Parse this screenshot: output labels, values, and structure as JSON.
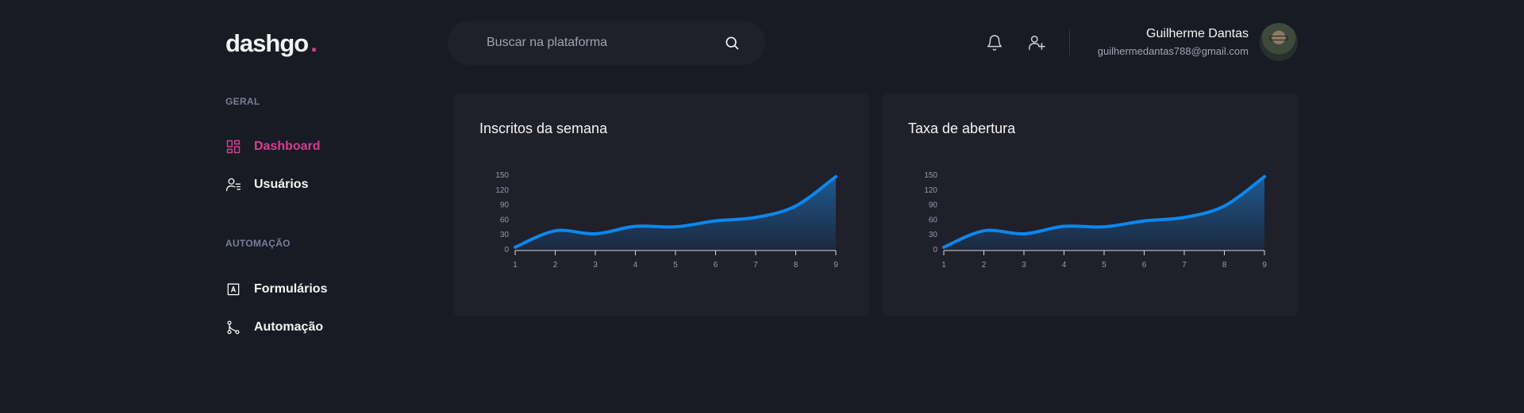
{
  "header": {
    "logo_text": "dashgo",
    "logo_dot": ".",
    "search_placeholder": "Buscar na plataforma",
    "icons": [
      "search-icon",
      "bell-icon",
      "user-plus-icon"
    ],
    "profile": {
      "name": "Guilherme Dantas",
      "email": "guilhermedantas788@gmail.com"
    }
  },
  "sidebar": {
    "sections": [
      {
        "title": "GERAL",
        "items": [
          {
            "label": "Dashboard",
            "icon": "dashboard-icon",
            "active": true
          },
          {
            "label": "Usuários",
            "icon": "users-icon",
            "active": false
          }
        ]
      },
      {
        "title": "AUTOMAÇÃO",
        "items": [
          {
            "label": "Formulários",
            "icon": "form-icon",
            "active": false
          },
          {
            "label": "Automação",
            "icon": "git-merge-icon",
            "active": false
          }
        ]
      }
    ]
  },
  "colors": {
    "background": "#181b23",
    "card": "#1f2029",
    "accent": "#d53f8c",
    "line": "#0c87ef",
    "muted": "#797d9a"
  },
  "chart_data": [
    {
      "type": "area",
      "title": "Inscritos da semana",
      "x": [
        1,
        2,
        3,
        4,
        5,
        6,
        7,
        8,
        9
      ],
      "series": [
        {
          "values": [
            5,
            38,
            32,
            47,
            46,
            58,
            65,
            88,
            147
          ]
        }
      ],
      "ylim": [
        0,
        150
      ],
      "yticks": [
        0,
        30,
        60,
        90,
        120,
        150
      ],
      "grid": false,
      "curve": "smooth"
    },
    {
      "type": "area",
      "title": "Taxa de abertura",
      "x": [
        1,
        2,
        3,
        4,
        5,
        6,
        7,
        8,
        9
      ],
      "series": [
        {
          "values": [
            5,
            38,
            32,
            47,
            46,
            58,
            65,
            88,
            147
          ]
        }
      ],
      "ylim": [
        0,
        150
      ],
      "yticks": [
        0,
        30,
        60,
        90,
        120,
        150
      ],
      "grid": false,
      "curve": "smooth"
    }
  ]
}
